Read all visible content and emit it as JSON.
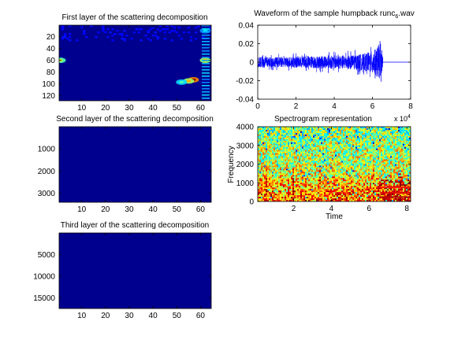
{
  "chart_data": [
    {
      "type": "heatmap",
      "title": "First layer of the scattering decomposition",
      "xlim": [
        0.5,
        64.5
      ],
      "ylim": [
        0.5,
        128.5
      ],
      "y_reversed": true,
      "xticks": [
        10,
        20,
        30,
        40,
        50,
        60
      ],
      "yticks": [
        20,
        40,
        60,
        80,
        100,
        120
      ],
      "colormap": "jet",
      "hot_spots": [
        {
          "x": 57,
          "y": 93,
          "value": 1.0
        },
        {
          "x": 55,
          "y": 95,
          "value": 0.7
        },
        {
          "x": 52,
          "y": 97,
          "value": 0.45
        },
        {
          "x": 62,
          "y": 60,
          "value": 0.7
        },
        {
          "x": 1,
          "y": 60,
          "value": 0.6
        },
        {
          "x": 62,
          "y": 10,
          "value": 0.35
        }
      ]
    },
    {
      "type": "heatmap",
      "title": "Second layer of the scattering decomposition",
      "xlim": [
        0.5,
        64.5
      ],
      "ylim": [
        0.5,
        3400
      ],
      "y_reversed": true,
      "xticks": [
        10,
        20,
        30,
        40,
        50,
        60
      ],
      "yticks": [
        1000,
        2000,
        3000
      ],
      "colormap": "jet"
    },
    {
      "type": "heatmap",
      "title": "Third layer of the scattering decomposition",
      "xlim": [
        0.5,
        64.5
      ],
      "ylim": [
        0.5,
        17500
      ],
      "y_reversed": true,
      "xticks": [
        10,
        20,
        30,
        40,
        50,
        60
      ],
      "yticks": [
        5000,
        10000,
        15000
      ],
      "colormap": "jet"
    },
    {
      "type": "line",
      "title": "Waveform of the sample humpback",
      "title_suffix": "runc",
      "title_subscript": "6",
      "title_ext": ".wav",
      "xlim": [
        0,
        80000
      ],
      "ylim": [
        -0.04,
        0.04
      ],
      "xticks": [
        0,
        20000,
        40000,
        60000,
        80000
      ],
      "xtick_labels": [
        "0",
        "2",
        "4",
        "6",
        "8"
      ],
      "yticks": [
        -0.04,
        -0.02,
        0,
        0.02,
        0.04
      ],
      "ytick_labels": [
        "-0.04",
        "-0.02",
        "0",
        "0.02",
        "0.04"
      ],
      "x_multiplier": "x 10",
      "x_multiplier_exp": "4",
      "series": [
        {
          "color": "#0000ff",
          "x_start": 0,
          "x_end": 65500,
          "envelope_x": [
            0,
            10000,
            20000,
            30000,
            40000,
            50000,
            55000,
            60000,
            62000,
            63500,
            65500
          ],
          "envelope_amp": [
            0.01,
            0.009,
            0.01,
            0.011,
            0.012,
            0.013,
            0.015,
            0.02,
            0.025,
            0.032,
            0.012
          ]
        }
      ]
    },
    {
      "type": "heatmap",
      "title": "Spectrogram representation",
      "xlabel": "Time",
      "ylabel": "Frequency",
      "xlim": [
        1000,
        82000
      ],
      "ylim": [
        0,
        4000
      ],
      "xticks": [
        20000,
        40000,
        60000,
        80000
      ],
      "xtick_labels": [
        "2",
        "4",
        "6",
        "8"
      ],
      "yticks": [
        0,
        1000,
        2000,
        3000,
        4000
      ],
      "ytick_labels": [
        "0",
        "1000",
        "2000",
        "3000",
        "4000"
      ],
      "x_multiplier": "x 10",
      "x_multiplier_exp": "4",
      "colormap": "jet"
    }
  ]
}
